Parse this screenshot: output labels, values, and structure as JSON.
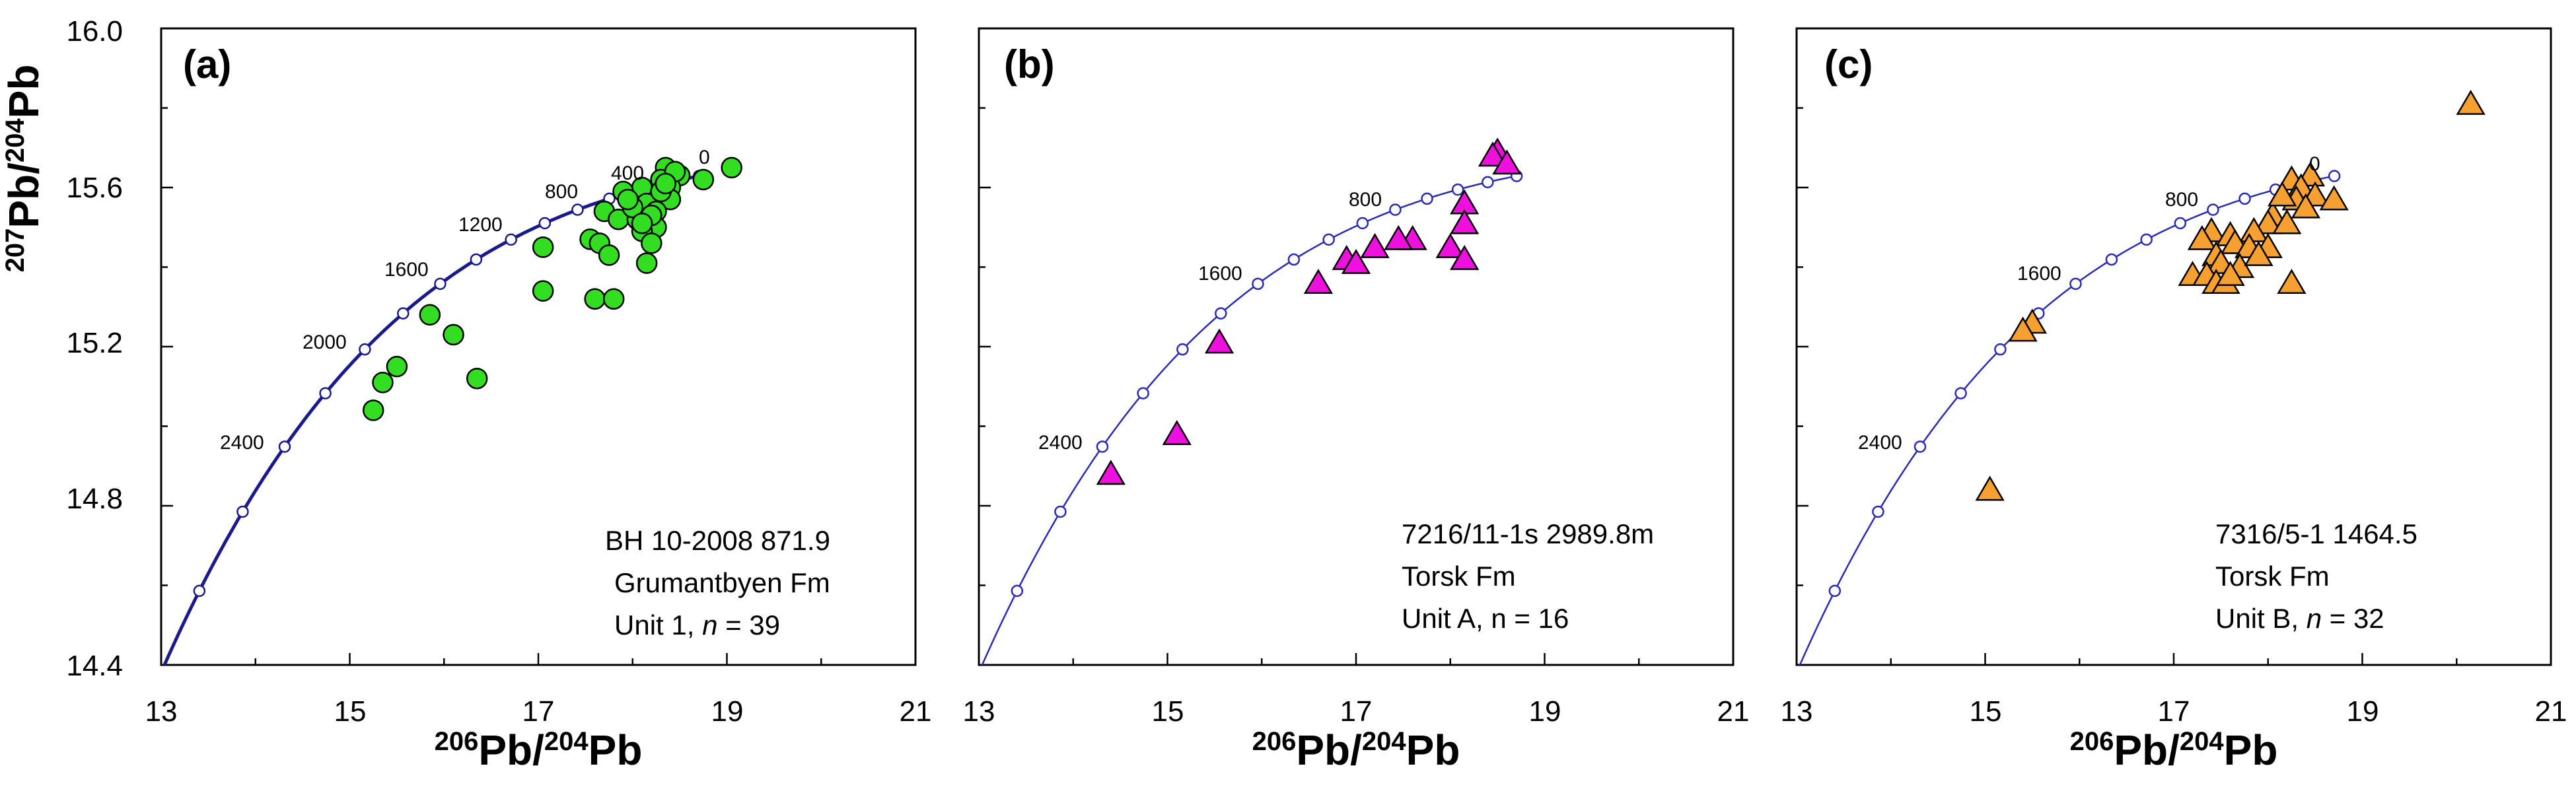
{
  "chart_data": [
    {
      "type": "scatter",
      "panel_label": "(a)",
      "xlabel": {
        "mass": "206",
        "element": "Pb",
        "sep": "/",
        "mass2": "204",
        "element2": "Pb"
      },
      "ylabel": {
        "mass": "207",
        "element": "Pb",
        "sep": "/",
        "mass2": "204",
        "element2": "Pb"
      },
      "xlim": [
        13,
        21
      ],
      "ylim": [
        14.4,
        16.0
      ],
      "xticks": [
        "13",
        "15",
        "17",
        "19",
        "21"
      ],
      "yticks": [
        "14.4",
        "14.8",
        "15.2",
        "15.6",
        "16.0"
      ],
      "info": {
        "line1": "BH 10-2008  871.9",
        "line2": "Grumantbyen Fm",
        "line3_prefix": "Unit 1, ",
        "line3_n": "n",
        "line3_suffix": " = 39"
      },
      "marker": "circle",
      "color": "#33dd22",
      "curve": {
        "color": "#1a1a8c",
        "width": "heavy"
      },
      "curve_labels": [
        {
          "text": "0",
          "anchor_age": 0
        },
        {
          "text": "400",
          "anchor_age": 400
        },
        {
          "text": "800",
          "anchor_age": 800
        },
        {
          "text": "1200",
          "anchor_age": 1200
        },
        {
          "text": "1600",
          "anchor_age": 1600
        },
        {
          "text": "2000",
          "anchor_age": 2000
        },
        {
          "text": "2400",
          "anchor_age": 2400
        }
      ],
      "points": [
        {
          "x": 19.05,
          "y": 15.65
        },
        {
          "x": 18.75,
          "y": 15.62
        },
        {
          "x": 18.5,
          "y": 15.63
        },
        {
          "x": 18.35,
          "y": 15.65
        },
        {
          "x": 18.3,
          "y": 15.62
        },
        {
          "x": 18.4,
          "y": 15.6
        },
        {
          "x": 18.25,
          "y": 15.58
        },
        {
          "x": 18.1,
          "y": 15.6
        },
        {
          "x": 17.9,
          "y": 15.59
        },
        {
          "x": 18.4,
          "y": 15.57
        },
        {
          "x": 18.15,
          "y": 15.56
        },
        {
          "x": 18.25,
          "y": 15.54
        },
        {
          "x": 17.7,
          "y": 15.54
        },
        {
          "x": 17.85,
          "y": 15.52
        },
        {
          "x": 18.05,
          "y": 15.52
        },
        {
          "x": 18.25,
          "y": 15.5
        },
        {
          "x": 18.1,
          "y": 15.49
        },
        {
          "x": 18.2,
          "y": 15.46
        },
        {
          "x": 17.55,
          "y": 15.47
        },
        {
          "x": 17.65,
          "y": 15.46
        },
        {
          "x": 17.05,
          "y": 15.45
        },
        {
          "x": 17.75,
          "y": 15.43
        },
        {
          "x": 18.15,
          "y": 15.41
        },
        {
          "x": 17.05,
          "y": 15.34
        },
        {
          "x": 17.6,
          "y": 15.32
        },
        {
          "x": 17.8,
          "y": 15.32
        },
        {
          "x": 15.85,
          "y": 15.28
        },
        {
          "x": 16.1,
          "y": 15.23
        },
        {
          "x": 15.5,
          "y": 15.15
        },
        {
          "x": 16.35,
          "y": 15.12
        },
        {
          "x": 15.35,
          "y": 15.11
        },
        {
          "x": 15.25,
          "y": 15.04
        },
        {
          "x": 18.0,
          "y": 15.55
        },
        {
          "x": 18.3,
          "y": 15.59
        },
        {
          "x": 18.45,
          "y": 15.64
        },
        {
          "x": 18.2,
          "y": 15.53
        },
        {
          "x": 17.95,
          "y": 15.57
        },
        {
          "x": 18.35,
          "y": 15.61
        },
        {
          "x": 18.1,
          "y": 15.51
        }
      ]
    },
    {
      "type": "scatter",
      "panel_label": "(b)",
      "xlabel": {
        "mass": "206",
        "element": "Pb",
        "sep": "/",
        "mass2": "204",
        "element2": "Pb"
      },
      "xlim": [
        13,
        21
      ],
      "ylim": [
        14.4,
        16.0
      ],
      "xticks": [
        "13",
        "15",
        "17",
        "19",
        "21"
      ],
      "info": {
        "line1": "7216/11-1s  2989.8m",
        "line2": "Torsk Fm",
        "line3_prefix": "Unit A, n = 16",
        "line3_n": "",
        "line3_suffix": ""
      },
      "marker": "triangle",
      "color": "#ee11dd",
      "curve": {
        "color": "#2a2ab8",
        "width": "thin"
      },
      "curve_labels": [
        {
          "text": "800",
          "anchor_age": 800
        },
        {
          "text": "1600",
          "anchor_age": 1600
        },
        {
          "text": "2400",
          "anchor_age": 2400
        }
      ],
      "points": [
        {
          "x": 18.5,
          "y": 15.69
        },
        {
          "x": 18.45,
          "y": 15.68
        },
        {
          "x": 18.6,
          "y": 15.66
        },
        {
          "x": 18.15,
          "y": 15.56
        },
        {
          "x": 18.15,
          "y": 15.51
        },
        {
          "x": 17.6,
          "y": 15.47
        },
        {
          "x": 17.45,
          "y": 15.47
        },
        {
          "x": 17.2,
          "y": 15.45
        },
        {
          "x": 18.0,
          "y": 15.45
        },
        {
          "x": 16.9,
          "y": 15.42
        },
        {
          "x": 17.0,
          "y": 15.41
        },
        {
          "x": 18.15,
          "y": 15.42
        },
        {
          "x": 16.6,
          "y": 15.36
        },
        {
          "x": 15.55,
          "y": 15.21
        },
        {
          "x": 15.1,
          "y": 14.98
        },
        {
          "x": 14.4,
          "y": 14.88
        }
      ]
    },
    {
      "type": "scatter",
      "panel_label": "(c)",
      "xlabel": {
        "mass": "206",
        "element": "Pb",
        "sep": "/",
        "mass2": "204",
        "element2": "Pb"
      },
      "xlim": [
        13,
        21
      ],
      "ylim": [
        14.4,
        16.0
      ],
      "xticks": [
        "13",
        "15",
        "17",
        "19",
        "21"
      ],
      "info": {
        "line1": "7316/5-1  1464.5",
        "line2": "Torsk Fm",
        "line3_prefix": "Unit B, ",
        "line3_n": "n",
        "line3_suffix": " = 32"
      },
      "marker": "triangle",
      "color": "#f5a030",
      "curve": {
        "color": "#2a2ab8",
        "width": "thin"
      },
      "curve_labels": [
        {
          "text": "0",
          "anchor_age": 0
        },
        {
          "text": "800",
          "anchor_age": 800
        },
        {
          "text": "1600",
          "anchor_age": 1600
        },
        {
          "text": "2400",
          "anchor_age": 2400
        }
      ],
      "points": [
        {
          "x": 20.15,
          "y": 15.81
        },
        {
          "x": 18.45,
          "y": 15.63
        },
        {
          "x": 18.25,
          "y": 15.62
        },
        {
          "x": 18.35,
          "y": 15.6
        },
        {
          "x": 18.5,
          "y": 15.58
        },
        {
          "x": 18.3,
          "y": 15.57
        },
        {
          "x": 18.7,
          "y": 15.57
        },
        {
          "x": 18.05,
          "y": 15.53
        },
        {
          "x": 18.0,
          "y": 15.51
        },
        {
          "x": 18.2,
          "y": 15.51
        },
        {
          "x": 17.4,
          "y": 15.49
        },
        {
          "x": 17.6,
          "y": 15.48
        },
        {
          "x": 17.85,
          "y": 15.49
        },
        {
          "x": 17.3,
          "y": 15.47
        },
        {
          "x": 17.65,
          "y": 15.46
        },
        {
          "x": 17.8,
          "y": 15.45
        },
        {
          "x": 18.0,
          "y": 15.45
        },
        {
          "x": 17.45,
          "y": 15.43
        },
        {
          "x": 17.5,
          "y": 15.41
        },
        {
          "x": 17.7,
          "y": 15.4
        },
        {
          "x": 17.2,
          "y": 15.38
        },
        {
          "x": 17.35,
          "y": 15.38
        },
        {
          "x": 17.45,
          "y": 15.36
        },
        {
          "x": 17.55,
          "y": 15.36
        },
        {
          "x": 18.25,
          "y": 15.36
        },
        {
          "x": 17.6,
          "y": 15.38
        },
        {
          "x": 15.5,
          "y": 15.26
        },
        {
          "x": 15.4,
          "y": 15.24
        },
        {
          "x": 15.05,
          "y": 14.84
        },
        {
          "x": 18.4,
          "y": 15.55
        },
        {
          "x": 17.9,
          "y": 15.43
        },
        {
          "x": 18.15,
          "y": 15.58
        }
      ]
    }
  ]
}
